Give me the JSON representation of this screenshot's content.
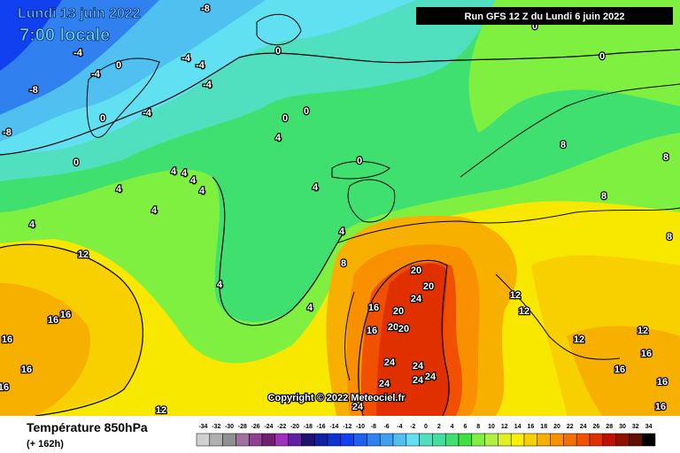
{
  "header": {
    "date": "Lundi 13 juin 2022",
    "time": "7:00 locale",
    "run": "Run GFS 12 Z du Lundi 6 juin 2022"
  },
  "copyright": "Copyright © 2022 Meteociel.fr",
  "footer": {
    "title": "Température 850hPa",
    "lead": "(+ 162h)"
  },
  "legend": {
    "values": [
      -34,
      -32,
      -30,
      -28,
      -26,
      -24,
      -22,
      -20,
      -18,
      -16,
      -14,
      -12,
      -10,
      -8,
      -6,
      -4,
      -2,
      0,
      2,
      4,
      6,
      8,
      10,
      12,
      14,
      16,
      18,
      20,
      22,
      24,
      26,
      28,
      30,
      32,
      34
    ],
    "colors": [
      "#d0d0d0",
      "#b0b0b0",
      "#909090",
      "#a070a0",
      "#904090",
      "#702070",
      "#a030c0",
      "#6020a0",
      "#201070",
      "#1020a0",
      "#1030d0",
      "#1040f0",
      "#2060f0",
      "#3080f0",
      "#40a0f0",
      "#50c0f0",
      "#60e0f0",
      "#50e0c0",
      "#40e0a0",
      "#40e070",
      "#40e040",
      "#80f040",
      "#b0f040",
      "#e0f020",
      "#f8f000",
      "#f8d000",
      "#f8b000",
      "#f89000",
      "#f07000",
      "#f05000",
      "#e03000",
      "#c01000",
      "#901000",
      "#601000",
      "#000000"
    ]
  },
  "map_labels": [
    -8,
    -4,
    -4,
    0,
    -8,
    -4,
    -4,
    -4,
    -4,
    0,
    0,
    0,
    0,
    4,
    0,
    4,
    4,
    4,
    4,
    4,
    4,
    4,
    4,
    4,
    4,
    4,
    8,
    12,
    16,
    16,
    16,
    16,
    16,
    12,
    20,
    20,
    24,
    16,
    20,
    20,
    20,
    16,
    24,
    24,
    24,
    24,
    24,
    24,
    0,
    0,
    8,
    8,
    8,
    12,
    12,
    12,
    12,
    16,
    16,
    16,
    16,
    8,
    0,
    -8
  ]
}
